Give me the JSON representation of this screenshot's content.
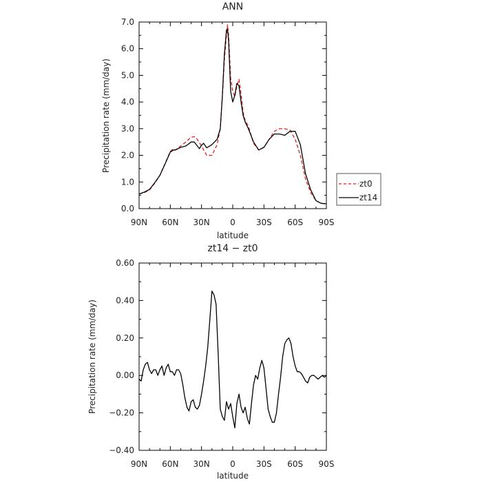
{
  "figure": {
    "panels": [
      {
        "title": "ANN",
        "xlabel": "latitude",
        "ylabel": "Precipitation rate (mm/day)"
      },
      {
        "title": "zt14 − zt0",
        "xlabel": "latitude",
        "ylabel": "Precipitation rate (mm/day)"
      }
    ],
    "legend": {
      "items": [
        {
          "label": "zt0"
        },
        {
          "label": "zt14"
        }
      ]
    }
  },
  "chart_data": [
    {
      "type": "line",
      "title": "ANN",
      "xlabel": "latitude",
      "ylabel": "Precipitation rate (mm/day)",
      "xlim": [
        90,
        -90
      ],
      "ylim": [
        0,
        7
      ],
      "x_ticks": [
        90,
        60,
        30,
        0,
        -30,
        -60,
        -90
      ],
      "x_tick_labels": [
        "90N",
        "60N",
        "30N",
        "0",
        "30S",
        "60S",
        "90S"
      ],
      "y_ticks": [
        0,
        1,
        2,
        3,
        4,
        5,
        6,
        7
      ],
      "y_tick_labels": [
        "0.0",
        "1.0",
        "2.0",
        "3.0",
        "4.0",
        "5.0",
        "6.0",
        "7.0"
      ],
      "grid": false,
      "legend_position": "outside-right",
      "series": [
        {
          "name": "zt0",
          "color": "#e02020",
          "dash": "dashed",
          "x": [
            90,
            85,
            80,
            75,
            70,
            65,
            60,
            57,
            55,
            50,
            45,
            40,
            37,
            35,
            30,
            25,
            20,
            15,
            12,
            10,
            8,
            6,
            5,
            4,
            2,
            0,
            -2,
            -4,
            -6,
            -8,
            -10,
            -12,
            -15,
            -20,
            -25,
            -30,
            -35,
            -40,
            -45,
            -50,
            -55,
            -60,
            -65,
            -70,
            -75,
            -80,
            -85,
            -90
          ],
          "y": [
            0.55,
            0.6,
            0.7,
            0.95,
            1.25,
            1.7,
            2.15,
            2.25,
            2.2,
            2.35,
            2.5,
            2.68,
            2.7,
            2.65,
            2.35,
            2.0,
            2.0,
            2.4,
            3.0,
            4.2,
            5.6,
            6.5,
            6.9,
            6.5,
            4.9,
            4.4,
            4.2,
            4.6,
            4.85,
            4.3,
            3.6,
            3.3,
            3.1,
            2.45,
            2.2,
            2.3,
            2.6,
            2.9,
            3.0,
            3.0,
            2.95,
            2.6,
            2.0,
            1.1,
            0.6,
            0.3,
            0.2,
            0.18
          ]
        },
        {
          "name": "zt14",
          "color": "#000000",
          "dash": "solid",
          "x": [
            90,
            85,
            80,
            75,
            70,
            65,
            60,
            57,
            55,
            50,
            45,
            40,
            37,
            35,
            32,
            30,
            28,
            25,
            20,
            15,
            12,
            10,
            8,
            6,
            5,
            4,
            2,
            0,
            -2,
            -4,
            -6,
            -8,
            -10,
            -12,
            -15,
            -20,
            -25,
            -30,
            -35,
            -40,
            -45,
            -50,
            -55,
            -60,
            -65,
            -70,
            -75,
            -80,
            -85,
            -90
          ],
          "y": [
            0.55,
            0.62,
            0.72,
            0.97,
            1.25,
            1.68,
            2.12,
            2.2,
            2.2,
            2.3,
            2.35,
            2.5,
            2.5,
            2.4,
            2.25,
            2.38,
            2.45,
            2.28,
            2.4,
            2.6,
            3.0,
            4.2,
            5.8,
            6.7,
            6.75,
            6.3,
            4.4,
            4.0,
            4.25,
            4.7,
            4.6,
            4.0,
            3.5,
            3.25,
            3.0,
            2.5,
            2.2,
            2.3,
            2.6,
            2.8,
            2.8,
            2.75,
            2.9,
            2.9,
            2.4,
            1.3,
            0.7,
            0.3,
            0.2,
            0.18
          ]
        }
      ]
    },
    {
      "type": "line",
      "title": "zt14 − zt0",
      "xlabel": "latitude",
      "ylabel": "Precipitation rate (mm/day)",
      "xlim": [
        90,
        -90
      ],
      "ylim": [
        -0.4,
        0.6
      ],
      "x_ticks": [
        90,
        60,
        30,
        0,
        -30,
        -60,
        -90
      ],
      "x_tick_labels": [
        "90N",
        "60N",
        "30N",
        "0",
        "30S",
        "60S",
        "90S"
      ],
      "y_ticks": [
        -0.4,
        -0.2,
        0,
        0.2,
        0.4,
        0.6
      ],
      "y_tick_labels": [
        "−0.40",
        "−0.20",
        "0.00",
        "0.20",
        "0.40",
        "0.60"
      ],
      "grid": false,
      "series": [
        {
          "color": "#000000",
          "dash": "solid",
          "x": [
            90,
            88,
            86,
            84,
            82,
            80,
            78,
            76,
            74,
            72,
            70,
            68,
            66,
            64,
            62,
            60,
            58,
            56,
            54,
            52,
            50,
            48,
            46,
            44,
            42,
            40,
            38,
            36,
            34,
            32,
            30,
            28,
            26,
            24,
            22,
            20,
            18,
            16,
            14,
            12,
            10,
            8,
            6,
            4,
            2,
            0,
            -2,
            -4,
            -6,
            -8,
            -10,
            -12,
            -14,
            -16,
            -18,
            -20,
            -22,
            -24,
            -26,
            -28,
            -30,
            -32,
            -34,
            -36,
            -38,
            -40,
            -42,
            -44,
            -46,
            -48,
            -50,
            -52,
            -54,
            -56,
            -58,
            -60,
            -62,
            -64,
            -66,
            -68,
            -70,
            -72,
            -74,
            -76,
            -78,
            -80,
            -82,
            -84,
            -86,
            -88,
            -90
          ],
          "y": [
            -0.02,
            -0.03,
            0.03,
            0.06,
            0.07,
            0.03,
            0.01,
            0.03,
            0.03,
            0.0,
            0.03,
            0.05,
            0.0,
            0.04,
            0.06,
            0.02,
            0.02,
            0.0,
            0.03,
            0.03,
            0.01,
            -0.05,
            -0.12,
            -0.17,
            -0.19,
            -0.14,
            -0.13,
            -0.17,
            -0.18,
            -0.16,
            -0.1,
            -0.03,
            0.05,
            0.15,
            0.3,
            0.45,
            0.43,
            0.38,
            0.12,
            -0.18,
            -0.22,
            -0.24,
            -0.14,
            -0.18,
            -0.15,
            -0.22,
            -0.28,
            -0.15,
            -0.1,
            -0.17,
            -0.2,
            -0.17,
            -0.23,
            -0.26,
            -0.15,
            -0.05,
            0.0,
            -0.02,
            0.04,
            0.08,
            0.04,
            -0.07,
            -0.18,
            -0.22,
            -0.25,
            -0.25,
            -0.2,
            -0.1,
            -0.01,
            0.1,
            0.17,
            0.19,
            0.2,
            0.17,
            0.1,
            0.05,
            0.02,
            0.02,
            0.01,
            -0.01,
            -0.03,
            -0.04,
            -0.01,
            0.0,
            0.0,
            -0.01,
            -0.02,
            -0.01,
            0.0,
            -0.01,
            0.0
          ]
        }
      ]
    }
  ]
}
